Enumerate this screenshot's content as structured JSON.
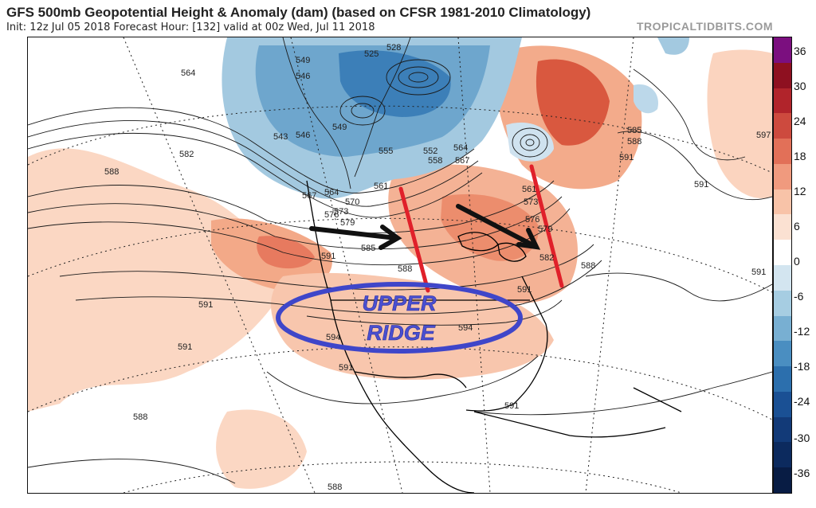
{
  "header": {
    "title": "GFS 500mb Geopotential Height & Anomaly (dam) (based on CFSR 1981-2010 Climatology)",
    "subtitle": "Init: 12z Jul 05 2018   Forecast Hour: [132]   valid at 00z Wed, Jul 11 2018",
    "brand": "TROPICALTIDBITS.COM"
  },
  "annotation": {
    "upper_ridge_line1": "UPPER",
    "upper_ridge_line2": "RIDGE",
    "ellipse_color": "#3f46c9",
    "arrow_color": "#111111",
    "axis_line_color": "#e0202a"
  },
  "contour_labels": [
    {
      "text": "564"
    },
    {
      "text": "549"
    },
    {
      "text": "546"
    },
    {
      "text": "525"
    },
    {
      "text": "528"
    },
    {
      "text": "543"
    },
    {
      "text": "546"
    },
    {
      "text": "549"
    },
    {
      "text": "582"
    },
    {
      "text": "588"
    },
    {
      "text": "567"
    },
    {
      "text": "564"
    },
    {
      "text": "570"
    },
    {
      "text": "573"
    },
    {
      "text": "576"
    },
    {
      "text": "579"
    },
    {
      "text": "591"
    },
    {
      "text": "585"
    },
    {
      "text": "555"
    },
    {
      "text": "561"
    },
    {
      "text": "552"
    },
    {
      "text": "558"
    },
    {
      "text": "564"
    },
    {
      "text": "567"
    },
    {
      "text": "561"
    },
    {
      "text": "573"
    },
    {
      "text": "576"
    },
    {
      "text": "579"
    },
    {
      "text": "582"
    },
    {
      "text": "588"
    },
    {
      "text": "591"
    },
    {
      "text": "594"
    },
    {
      "text": "594"
    },
    {
      "text": "591"
    },
    {
      "text": "591"
    },
    {
      "text": "591"
    },
    {
      "text": "588"
    },
    {
      "text": "585"
    },
    {
      "text": "588"
    },
    {
      "text": "591"
    },
    {
      "text": "597"
    },
    {
      "text": "591"
    },
    {
      "text": "591"
    },
    {
      "text": "588"
    },
    {
      "text": "588"
    },
    {
      "text": "591"
    }
  ],
  "colorbar": {
    "ticks": [
      "36",
      "30",
      "24",
      "18",
      "12",
      "6",
      "0",
      "-6",
      "-12",
      "-18",
      "-24",
      "-30",
      "-36"
    ],
    "colors": [
      "#7b0f7f",
      "#8e1020",
      "#b1242b",
      "#cd4a3e",
      "#e27058",
      "#f09a7e",
      "#f8c3a8",
      "#fbe1d2",
      "#ffffff",
      "#d3e5f0",
      "#a6cde2",
      "#78afd2",
      "#4a8ec1",
      "#2c6fad",
      "#1a5094",
      "#123a78",
      "#0c2a5e",
      "#081c44"
    ]
  }
}
